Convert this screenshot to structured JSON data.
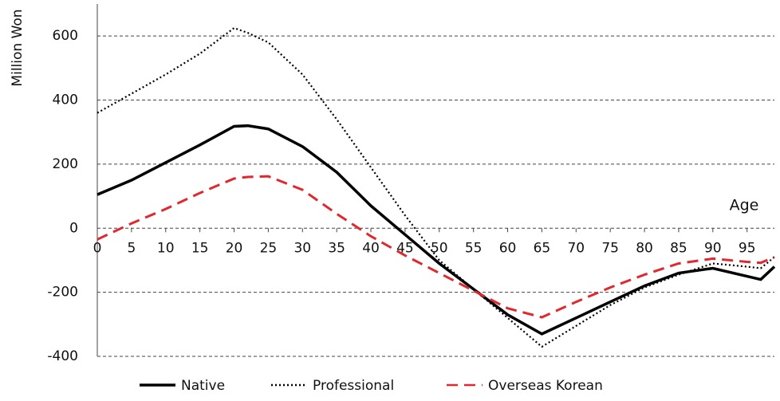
{
  "chart_data": {
    "type": "line",
    "y_label": "Million Won",
    "x_label": "Age",
    "x": [
      0,
      5,
      10,
      15,
      20,
      22,
      25,
      30,
      35,
      40,
      45,
      50,
      55,
      60,
      65,
      70,
      75,
      80,
      85,
      90,
      95,
      97,
      99
    ],
    "series": [
      {
        "name": "Native",
        "color": "#000000",
        "style": "solid",
        "values": [
          105,
          150,
          205,
          260,
          318,
          320,
          310,
          255,
          175,
          70,
          -20,
          -110,
          -190,
          -270,
          -330,
          -280,
          -230,
          -180,
          -140,
          -125,
          -150,
          -160,
          -120
        ]
      },
      {
        "name": "Professional",
        "color": "#000000",
        "style": "dotted",
        "values": [
          360,
          420,
          480,
          545,
          625,
          610,
          580,
          480,
          340,
          190,
          40,
          -100,
          -190,
          -280,
          -370,
          -305,
          -240,
          -185,
          -145,
          -110,
          -120,
          -125,
          -90
        ]
      },
      {
        "name": "Overseas Korean",
        "color": "#e0282e",
        "style": "dashed",
        "values": [
          -35,
          15,
          60,
          110,
          155,
          160,
          162,
          120,
          45,
          -25,
          -85,
          -140,
          -195,
          -250,
          -278,
          -230,
          -185,
          -145,
          -110,
          -95,
          -105,
          -108,
          -90
        ]
      }
    ],
    "xlim": [
      0,
      99
    ],
    "ylim": [
      -400,
      700
    ],
    "xticks": [
      0,
      5,
      10,
      15,
      20,
      25,
      30,
      35,
      40,
      45,
      50,
      55,
      60,
      65,
      70,
      75,
      80,
      85,
      90,
      95
    ],
    "yticks": [
      -400,
      -200,
      0,
      200,
      400,
      600
    ],
    "grid": true,
    "legend": "bottom"
  }
}
